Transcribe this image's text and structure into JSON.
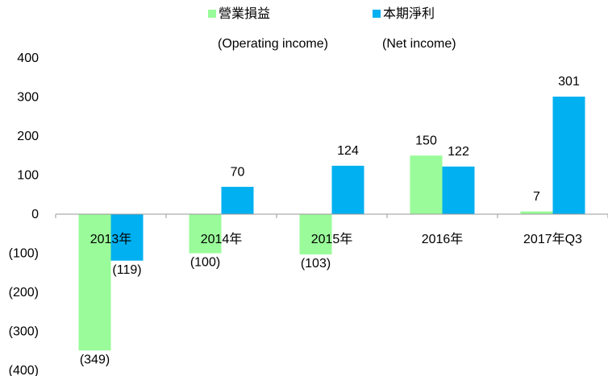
{
  "chart_data": {
    "type": "bar",
    "categories": [
      "2013年",
      "2014年",
      "2015年",
      "2016年",
      "2017年Q3"
    ],
    "series": [
      {
        "name": "營業損益",
        "name_en": "(Operating income)",
        "color": "#99fb99",
        "values": [
          -349,
          -100,
          -103,
          150,
          7
        ],
        "value_labels": [
          "(349)",
          "(100)",
          "(103)",
          "150",
          "7"
        ]
      },
      {
        "name": "本期淨利",
        "name_en": "(Net income)",
        "color": "#00b0f0",
        "values": [
          -119,
          70,
          124,
          122,
          301
        ],
        "value_labels": [
          "(119)",
          "70",
          "124",
          "122",
          "301"
        ]
      }
    ],
    "ylim": [
      -400,
      400
    ],
    "yticks": [
      400,
      300,
      200,
      100,
      0,
      {
        "value": -100,
        "label": "(100)"
      },
      {
        "value": -200,
        "label": "(200)"
      },
      {
        "value": -300,
        "label": "(300)"
      },
      {
        "value": -400,
        "label": "(400)"
      }
    ],
    "negative_color": "#ff0000",
    "legend": "top"
  }
}
